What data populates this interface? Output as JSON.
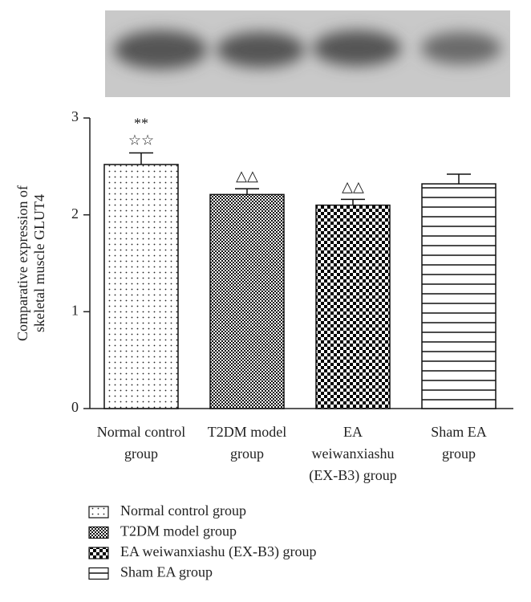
{
  "chart_data": {
    "type": "bar",
    "ylabel": [
      "Comparative expression of",
      "skeletal muscle GLUT4"
    ],
    "categories": [
      [
        "Normal control",
        "group"
      ],
      [
        "T2DM model",
        "group"
      ],
      [
        "EA",
        "weiwanxiashu",
        "(EX-B3) group"
      ],
      [
        "Sham EA",
        "group"
      ]
    ],
    "values": [
      2.52,
      2.21,
      2.1,
      2.32
    ],
    "errors": [
      0.12,
      0.06,
      0.06,
      0.1
    ],
    "patterns": [
      "dots",
      "fine-checker",
      "checker",
      "hlines"
    ],
    "annotations": [
      [
        "**",
        "☆☆"
      ],
      [
        "△△"
      ],
      [
        "△△"
      ],
      []
    ],
    "legend": [
      "Normal control group",
      "T2DM model group",
      "EA weiwanxiashu (EX-B3) group",
      "Sham EA group"
    ],
    "ylim": [
      0,
      3
    ],
    "yticks": [
      0,
      1,
      2,
      3
    ]
  }
}
